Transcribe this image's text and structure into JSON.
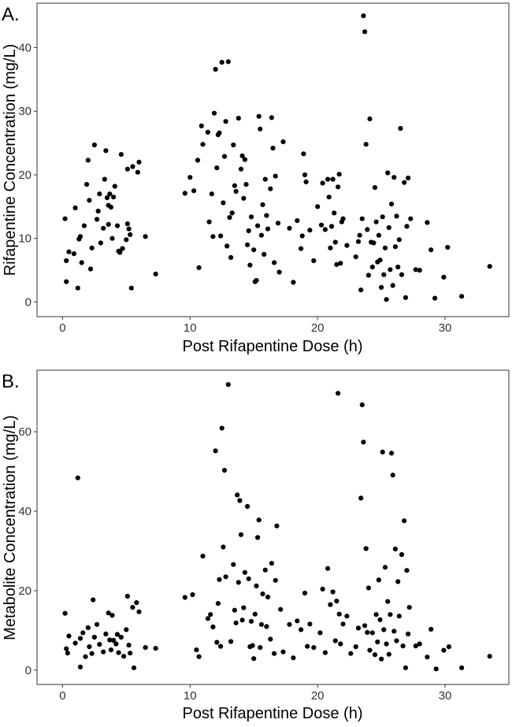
{
  "chart_data": [
    {
      "type": "scatter",
      "panel_label": "A.",
      "xlabel": "Post Rifapentine Dose (h)",
      "ylabel": "Rifapentine Concentration (mg/L)",
      "xlim": [
        -2,
        35
      ],
      "ylim": [
        -2.3,
        47
      ],
      "xticks": [
        0,
        10,
        20,
        30
      ],
      "yticks": [
        0,
        10,
        20,
        30,
        40
      ],
      "grid": false,
      "points": [
        [
          0.2,
          13.1
        ],
        [
          0.3,
          6.5
        ],
        [
          0.3,
          3.2
        ],
        [
          0.5,
          7.9
        ],
        [
          0.9,
          7.6
        ],
        [
          1.0,
          14.8
        ],
        [
          1.2,
          2.2
        ],
        [
          1.3,
          9.9
        ],
        [
          1.4,
          10.3
        ],
        [
          1.5,
          6.2
        ],
        [
          1.7,
          12.0
        ],
        [
          1.9,
          18.5
        ],
        [
          2.0,
          22.3
        ],
        [
          2.1,
          16.0
        ],
        [
          2.2,
          5.2
        ],
        [
          2.3,
          8.5
        ],
        [
          2.5,
          24.7
        ],
        [
          2.7,
          13.0
        ],
        [
          2.8,
          14.3
        ],
        [
          2.9,
          17.0
        ],
        [
          3.0,
          9.3
        ],
        [
          3.2,
          11.6
        ],
        [
          3.3,
          19.3
        ],
        [
          3.4,
          23.8
        ],
        [
          3.5,
          16.4
        ],
        [
          3.6,
          15.2
        ],
        [
          3.6,
          12.2
        ],
        [
          3.7,
          17.0
        ],
        [
          3.8,
          14.9
        ],
        [
          3.9,
          10.0
        ],
        [
          4.0,
          16.5
        ],
        [
          4.1,
          18.2
        ],
        [
          4.3,
          12.0
        ],
        [
          4.4,
          8.0
        ],
        [
          4.5,
          7.8
        ],
        [
          4.6,
          23.2
        ],
        [
          4.7,
          8.4
        ],
        [
          5.0,
          9.8
        ],
        [
          5.1,
          12.3
        ],
        [
          5.1,
          20.9
        ],
        [
          5.2,
          11.5
        ],
        [
          5.3,
          10.6
        ],
        [
          5.4,
          2.2
        ],
        [
          5.5,
          21.3
        ],
        [
          5.9,
          20.4
        ],
        [
          6.0,
          22.0
        ],
        [
          6.5,
          10.3
        ],
        [
          7.3,
          4.4
        ],
        [
          9.6,
          17.1
        ],
        [
          10.0,
          19.6
        ],
        [
          10.3,
          17.5
        ],
        [
          10.6,
          22.3
        ],
        [
          10.7,
          5.4
        ],
        [
          10.9,
          27.7
        ],
        [
          11.0,
          24.8
        ],
        [
          11.4,
          26.7
        ],
        [
          11.5,
          12.6
        ],
        [
          11.7,
          17.0
        ],
        [
          11.8,
          10.3
        ],
        [
          11.9,
          29.7
        ],
        [
          12.0,
          36.6
        ],
        [
          12.1,
          21.1
        ],
        [
          12.2,
          26.3
        ],
        [
          12.3,
          26.6
        ],
        [
          12.4,
          10.4
        ],
        [
          12.5,
          37.7
        ],
        [
          12.6,
          15.6
        ],
        [
          12.7,
          22.9
        ],
        [
          12.8,
          28.4
        ],
        [
          12.9,
          8.8
        ],
        [
          13.0,
          37.8
        ],
        [
          13.1,
          13.3
        ],
        [
          13.2,
          7.0
        ],
        [
          13.3,
          14.0
        ],
        [
          13.4,
          24.7
        ],
        [
          13.5,
          18.3
        ],
        [
          13.6,
          17.4
        ],
        [
          13.8,
          28.9
        ],
        [
          14.0,
          20.9
        ],
        [
          14.1,
          23.0
        ],
        [
          14.2,
          16.3
        ],
        [
          14.3,
          22.4
        ],
        [
          14.4,
          18.5
        ],
        [
          14.5,
          9.0
        ],
        [
          14.6,
          11.2
        ],
        [
          14.7,
          5.8
        ],
        [
          14.8,
          13.4
        ],
        [
          15.0,
          8.2
        ],
        [
          15.1,
          3.2
        ],
        [
          15.2,
          3.4
        ],
        [
          15.3,
          12.0
        ],
        [
          15.4,
          29.2
        ],
        [
          15.5,
          27.2
        ],
        [
          15.6,
          10.5
        ],
        [
          15.7,
          15.3
        ],
        [
          15.8,
          7.5
        ],
        [
          15.9,
          19.3
        ],
        [
          16.0,
          13.6
        ],
        [
          16.1,
          11.5
        ],
        [
          16.3,
          17.8
        ],
        [
          16.4,
          29.0
        ],
        [
          16.5,
          24.2
        ],
        [
          16.6,
          6.2
        ],
        [
          16.7,
          19.8
        ],
        [
          16.9,
          12.4
        ],
        [
          17.0,
          4.7
        ],
        [
          17.3,
          25.2
        ],
        [
          17.8,
          11.6
        ],
        [
          18.1,
          3.1
        ],
        [
          18.4,
          12.8
        ],
        [
          18.7,
          8.4
        ],
        [
          18.8,
          10.4
        ],
        [
          18.9,
          23.3
        ],
        [
          19.0,
          20.0
        ],
        [
          19.1,
          18.9
        ],
        [
          19.4,
          11.3
        ],
        [
          19.7,
          6.5
        ],
        [
          20.0,
          15.0
        ],
        [
          20.3,
          12.1
        ],
        [
          20.4,
          18.7
        ],
        [
          20.6,
          11.4
        ],
        [
          20.8,
          19.3
        ],
        [
          20.9,
          16.5
        ],
        [
          21.0,
          8.5
        ],
        [
          21.1,
          11.9
        ],
        [
          21.2,
          19.3
        ],
        [
          21.3,
          14.0
        ],
        [
          21.4,
          9.4
        ],
        [
          21.5,
          5.9
        ],
        [
          21.6,
          18.1
        ],
        [
          21.7,
          20.1
        ],
        [
          21.8,
          6.1
        ],
        [
          21.9,
          12.6
        ],
        [
          22.0,
          13.1
        ],
        [
          22.3,
          8.9
        ],
        [
          23.0,
          7.1
        ],
        [
          23.2,
          9.5
        ],
        [
          23.3,
          10.5
        ],
        [
          23.4,
          1.9
        ],
        [
          23.5,
          13.1
        ],
        [
          23.6,
          45.0
        ],
        [
          23.7,
          42.5
        ],
        [
          23.8,
          24.8
        ],
        [
          23.9,
          11.4
        ],
        [
          24.0,
          4.2
        ],
        [
          24.1,
          28.8
        ],
        [
          24.2,
          9.4
        ],
        [
          24.3,
          5.5
        ],
        [
          24.4,
          9.3
        ],
        [
          24.5,
          18.0
        ],
        [
          24.6,
          12.6
        ],
        [
          24.7,
          6.3
        ],
        [
          24.8,
          10.5
        ],
        [
          24.9,
          6.6
        ],
        [
          25.0,
          2.3
        ],
        [
          25.1,
          13.4
        ],
        [
          25.2,
          4.3
        ],
        [
          25.3,
          8.5
        ],
        [
          25.4,
          0.4
        ],
        [
          25.5,
          20.3
        ],
        [
          25.6,
          11.7
        ],
        [
          25.7,
          5.1
        ],
        [
          25.8,
          15.4
        ],
        [
          25.9,
          2.6
        ],
        [
          26.0,
          19.6
        ],
        [
          26.1,
          8.7
        ],
        [
          26.2,
          13.5
        ],
        [
          26.3,
          5.5
        ],
        [
          26.4,
          9.8
        ],
        [
          26.5,
          27.3
        ],
        [
          26.6,
          4.3
        ],
        [
          26.8,
          18.8
        ],
        [
          26.9,
          0.7
        ],
        [
          27.0,
          11.9
        ],
        [
          27.1,
          19.5
        ],
        [
          27.3,
          13.1
        ],
        [
          27.7,
          5.1
        ],
        [
          28.0,
          5.0
        ],
        [
          28.6,
          12.5
        ],
        [
          28.9,
          8.2
        ],
        [
          29.2,
          0.6
        ],
        [
          29.9,
          3.9
        ],
        [
          30.2,
          8.6
        ],
        [
          31.3,
          0.9
        ],
        [
          33.5,
          5.6
        ]
      ]
    },
    {
      "type": "scatter",
      "panel_label": "B.",
      "xlabel": "Post Rifapentine Dose (h)",
      "ylabel": "Metabolite Concentration (mg/L)",
      "xlim": [
        -2,
        35
      ],
      "ylim": [
        -3.6,
        75.5
      ],
      "xticks": [
        0,
        10,
        20,
        30
      ],
      "yticks": [
        0,
        20,
        40,
        60
      ],
      "grid": false,
      "points": [
        [
          0.2,
          14.3
        ],
        [
          0.3,
          5.4
        ],
        [
          0.4,
          4.3
        ],
        [
          0.5,
          8.6
        ],
        [
          1.0,
          6.8
        ],
        [
          1.2,
          48.4
        ],
        [
          1.4,
          8.0
        ],
        [
          1.4,
          0.8
        ],
        [
          1.6,
          9.4
        ],
        [
          1.8,
          3.4
        ],
        [
          2.0,
          10.7
        ],
        [
          2.1,
          5.9
        ],
        [
          2.3,
          4.2
        ],
        [
          2.4,
          17.7
        ],
        [
          2.5,
          8.3
        ],
        [
          2.7,
          11.5
        ],
        [
          2.9,
          6.5
        ],
        [
          3.2,
          4.6
        ],
        [
          3.4,
          9.1
        ],
        [
          3.6,
          14.4
        ],
        [
          3.7,
          7.6
        ],
        [
          3.8,
          5.1
        ],
        [
          3.9,
          13.8
        ],
        [
          4.0,
          7.5
        ],
        [
          4.2,
          6.6
        ],
        [
          4.3,
          9.0
        ],
        [
          4.4,
          4.4
        ],
        [
          4.6,
          8.3
        ],
        [
          4.8,
          3.5
        ],
        [
          5.0,
          10.2
        ],
        [
          5.1,
          18.6
        ],
        [
          5.2,
          6.3
        ],
        [
          5.3,
          4.3
        ],
        [
          5.5,
          15.8
        ],
        [
          5.6,
          0.6
        ],
        [
          5.8,
          17.0
        ],
        [
          6.0,
          14.7
        ],
        [
          6.5,
          5.7
        ],
        [
          7.3,
          5.5
        ],
        [
          9.6,
          18.3
        ],
        [
          10.2,
          19.0
        ],
        [
          10.5,
          5.1
        ],
        [
          10.7,
          3.4
        ],
        [
          11.0,
          28.7
        ],
        [
          11.4,
          13.0
        ],
        [
          11.6,
          14.0
        ],
        [
          11.8,
          10.9
        ],
        [
          12.0,
          55.2
        ],
        [
          12.1,
          7.0
        ],
        [
          12.2,
          16.8
        ],
        [
          12.3,
          22.8
        ],
        [
          12.4,
          6.0
        ],
        [
          12.5,
          60.9
        ],
        [
          12.6,
          31.0
        ],
        [
          12.7,
          50.3
        ],
        [
          12.8,
          23.5
        ],
        [
          13.0,
          71.9
        ],
        [
          13.2,
          7.2
        ],
        [
          13.4,
          26.6
        ],
        [
          13.5,
          15.1
        ],
        [
          13.6,
          11.9
        ],
        [
          13.7,
          44.1
        ],
        [
          13.8,
          22.1
        ],
        [
          13.9,
          42.7
        ],
        [
          14.0,
          34.1
        ],
        [
          14.1,
          12.6
        ],
        [
          14.2,
          15.7
        ],
        [
          14.3,
          24.6
        ],
        [
          14.5,
          41.2
        ],
        [
          14.6,
          23.0
        ],
        [
          14.7,
          5.9
        ],
        [
          14.8,
          12.3
        ],
        [
          14.9,
          6.2
        ],
        [
          15.0,
          2.9
        ],
        [
          15.1,
          14.1
        ],
        [
          15.2,
          21.2
        ],
        [
          15.3,
          33.4
        ],
        [
          15.4,
          37.8
        ],
        [
          15.5,
          5.7
        ],
        [
          15.6,
          11.5
        ],
        [
          15.7,
          19.2
        ],
        [
          15.9,
          25.2
        ],
        [
          16.0,
          11.0
        ],
        [
          16.1,
          18.4
        ],
        [
          16.3,
          7.8
        ],
        [
          16.4,
          26.9
        ],
        [
          16.6,
          4.2
        ],
        [
          16.7,
          22.6
        ],
        [
          16.8,
          36.3
        ],
        [
          17.1,
          15.3
        ],
        [
          17.3,
          4.6
        ],
        [
          17.8,
          11.5
        ],
        [
          18.1,
          3.1
        ],
        [
          18.4,
          12.4
        ],
        [
          18.7,
          10.2
        ],
        [
          19.0,
          19.4
        ],
        [
          19.2,
          6.0
        ],
        [
          19.4,
          11.6
        ],
        [
          19.7,
          5.7
        ],
        [
          20.2,
          9.4
        ],
        [
          20.4,
          20.4
        ],
        [
          20.6,
          4.4
        ],
        [
          20.8,
          25.6
        ],
        [
          21.0,
          16.5
        ],
        [
          21.2,
          19.7
        ],
        [
          21.4,
          7.4
        ],
        [
          21.5,
          17.4
        ],
        [
          21.6,
          69.7
        ],
        [
          21.7,
          14.1
        ],
        [
          21.8,
          6.6
        ],
        [
          22.0,
          11.6
        ],
        [
          22.3,
          13.6
        ],
        [
          22.6,
          4.2
        ],
        [
          23.0,
          5.9
        ],
        [
          23.2,
          10.6
        ],
        [
          23.4,
          43.3
        ],
        [
          23.5,
          66.8
        ],
        [
          23.6,
          57.4
        ],
        [
          23.7,
          11.2
        ],
        [
          23.8,
          30.6
        ],
        [
          23.9,
          9.5
        ],
        [
          24.0,
          20.7
        ],
        [
          24.1,
          5.0
        ],
        [
          24.3,
          9.4
        ],
        [
          24.5,
          3.9
        ],
        [
          24.6,
          14.0
        ],
        [
          24.7,
          7.1
        ],
        [
          24.8,
          22.7
        ],
        [
          24.9,
          12.7
        ],
        [
          25.0,
          2.8
        ],
        [
          25.1,
          54.9
        ],
        [
          25.2,
          10.2
        ],
        [
          25.3,
          25.9
        ],
        [
          25.4,
          6.6
        ],
        [
          25.5,
          17.3
        ],
        [
          25.6,
          4.0
        ],
        [
          25.7,
          14.0
        ],
        [
          25.8,
          54.6
        ],
        [
          25.9,
          49.1
        ],
        [
          26.0,
          9.8
        ],
        [
          26.1,
          30.5
        ],
        [
          26.2,
          7.4
        ],
        [
          26.3,
          22.3
        ],
        [
          26.4,
          13.6
        ],
        [
          26.6,
          29.1
        ],
        [
          26.7,
          6.1
        ],
        [
          26.8,
          37.6
        ],
        [
          26.9,
          0.6
        ],
        [
          27.0,
          25.1
        ],
        [
          27.1,
          9.1
        ],
        [
          27.2,
          15.8
        ],
        [
          27.7,
          6.1
        ],
        [
          28.0,
          6.6
        ],
        [
          28.6,
          3.3
        ],
        [
          28.9,
          10.3
        ],
        [
          29.3,
          0.3
        ],
        [
          29.9,
          5.0
        ],
        [
          30.3,
          5.9
        ],
        [
          31.3,
          0.6
        ],
        [
          33.5,
          3.5
        ]
      ]
    }
  ]
}
